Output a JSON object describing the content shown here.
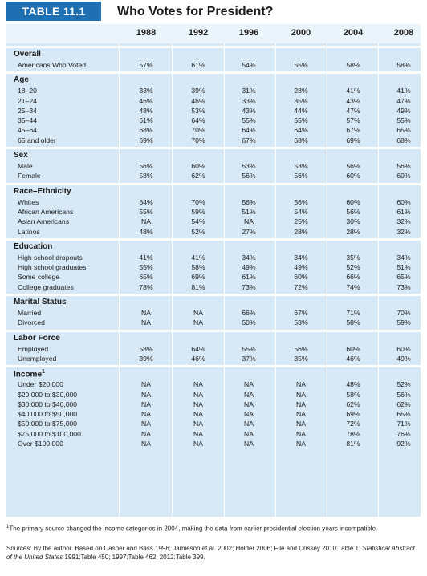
{
  "header": {
    "tag": "TABLE 11.1",
    "title": "Who Votes for President?"
  },
  "columns": [
    "1988",
    "1992",
    "1996",
    "2000",
    "2004",
    "2008"
  ],
  "sections": [
    {
      "title": "Overall",
      "rows": [
        {
          "label": "Americans Who Voted",
          "values": [
            "57%",
            "61%",
            "54%",
            "55%",
            "58%",
            "58%"
          ]
        }
      ]
    },
    {
      "title": "Age",
      "rows": [
        {
          "label": "18–20",
          "values": [
            "33%",
            "39%",
            "31%",
            "28%",
            "41%",
            "41%"
          ]
        },
        {
          "label": "21–24",
          "values": [
            "46%",
            "46%",
            "33%",
            "35%",
            "43%",
            "47%"
          ]
        },
        {
          "label": "25–34",
          "values": [
            "48%",
            "53%",
            "43%",
            "44%",
            "47%",
            "49%"
          ]
        },
        {
          "label": "35–44",
          "values": [
            "61%",
            "64%",
            "55%",
            "55%",
            "57%",
            "55%"
          ]
        },
        {
          "label": "45–64",
          "values": [
            "68%",
            "70%",
            "64%",
            "64%",
            "67%",
            "65%"
          ]
        },
        {
          "label": "65 and older",
          "values": [
            "69%",
            "70%",
            "67%",
            "68%",
            "69%",
            "68%"
          ]
        }
      ]
    },
    {
      "title": "Sex",
      "rows": [
        {
          "label": "Male",
          "values": [
            "56%",
            "60%",
            "53%",
            "53%",
            "56%",
            "56%"
          ]
        },
        {
          "label": "Female",
          "values": [
            "58%",
            "62%",
            "56%",
            "56%",
            "60%",
            "60%"
          ]
        }
      ]
    },
    {
      "title": "Race–Ethnicity",
      "rows": [
        {
          "label": "Whites",
          "values": [
            "64%",
            "70%",
            "56%",
            "56%",
            "60%",
            "60%"
          ]
        },
        {
          "label": "African Americans",
          "values": [
            "55%",
            "59%",
            "51%",
            "54%",
            "56%",
            "61%"
          ]
        },
        {
          "label": "Asian Americans",
          "values": [
            "NA",
            "54%",
            "NA",
            "25%",
            "30%",
            "32%"
          ]
        },
        {
          "label": "Latinos",
          "values": [
            "48%",
            "52%",
            "27%",
            "28%",
            "28%",
            "32%"
          ]
        }
      ]
    },
    {
      "title": "Education",
      "rows": [
        {
          "label": "High school dropouts",
          "values": [
            "41%",
            "41%",
            "34%",
            "34%",
            "35%",
            "34%"
          ]
        },
        {
          "label": "High school graduates",
          "values": [
            "55%",
            "58%",
            "49%",
            "49%",
            "52%",
            "51%"
          ]
        },
        {
          "label": "Some college",
          "values": [
            "65%",
            "69%",
            "61%",
            "60%",
            "66%",
            "65%"
          ]
        },
        {
          "label": "College graduates",
          "values": [
            "78%",
            "81%",
            "73%",
            "72%",
            "74%",
            "73%"
          ]
        }
      ]
    },
    {
      "title": "Marital Status",
      "rows": [
        {
          "label": "Married",
          "values": [
            "NA",
            "NA",
            "66%",
            "67%",
            "71%",
            "70%"
          ]
        },
        {
          "label": "Divorced",
          "values": [
            "NA",
            "NA",
            "50%",
            "53%",
            "58%",
            "59%"
          ]
        }
      ]
    },
    {
      "title": "Labor Force",
      "rows": [
        {
          "label": "Employed",
          "values": [
            "58%",
            "64%",
            "55%",
            "56%",
            "60%",
            "60%"
          ]
        },
        {
          "label": "Unemployed",
          "values": [
            "39%",
            "46%",
            "37%",
            "35%",
            "46%",
            "49%"
          ]
        }
      ]
    },
    {
      "title": "Income",
      "title_sup": "1",
      "rows": [
        {
          "label": "Under $20,000",
          "values": [
            "NA",
            "NA",
            "NA",
            "NA",
            "48%",
            "52%"
          ]
        },
        {
          "label": "$20,000 to $30,000",
          "values": [
            "NA",
            "NA",
            "NA",
            "NA",
            "58%",
            "56%"
          ]
        },
        {
          "label": "$30,000 to $40,000",
          "values": [
            "NA",
            "NA",
            "NA",
            "NA",
            "62%",
            "62%"
          ]
        },
        {
          "label": "$40,000 to $50,000",
          "values": [
            "NA",
            "NA",
            "NA",
            "NA",
            "69%",
            "65%"
          ]
        },
        {
          "label": "$50,000 to $75,000",
          "values": [
            "NA",
            "NA",
            "NA",
            "NA",
            "72%",
            "71%"
          ]
        },
        {
          "label": "$75,000 to $100,000",
          "values": [
            "NA",
            "NA",
            "NA",
            "NA",
            "78%",
            "76%"
          ]
        },
        {
          "label": "Over $100,000",
          "values": [
            "NA",
            "NA",
            "NA",
            "NA",
            "81%",
            "92%"
          ]
        }
      ]
    }
  ],
  "footnote": {
    "marker": "1",
    "text": "The primary source changed the income categories in 2004, making the data from earlier presidential election years incompatible."
  },
  "sources": {
    "prefix": "Sources: By the author. Based on Casper and Bass 1996; Jamieson et al. 2002; Holder 2006; File and Crissey 2010:Table 1; ",
    "italic": "Statistical Abstract of the United States",
    "suffix": " 1991:Table 450; 1997:Table 462; 2012:Table 399."
  },
  "colors": {
    "tag_bg": "#1f6fb3",
    "table_bg": "#d7e9f7",
    "header_bg": "#eaf4fc"
  }
}
